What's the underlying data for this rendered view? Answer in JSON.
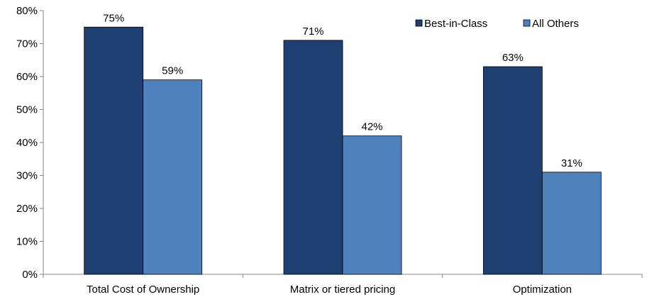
{
  "chart_data": {
    "type": "bar",
    "categories": [
      "Total Cost of Ownership",
      "Matrix or tiered pricing",
      "Optimization"
    ],
    "series": [
      {
        "name": "Best-in-Class",
        "values": [
          75,
          71,
          63
        ],
        "labels": [
          "75%",
          "71%",
          "63%"
        ],
        "color": "#1F3F73"
      },
      {
        "name": "All Others",
        "values": [
          59,
          42,
          31
        ],
        "labels": [
          "59%",
          "42%",
          "31%"
        ],
        "color": "#4F81BD"
      }
    ],
    "yticks": [
      0,
      10,
      20,
      30,
      40,
      50,
      60,
      70,
      80
    ],
    "ytick_labels": [
      "0%",
      "10%",
      "20%",
      "30%",
      "40%",
      "50%",
      "60%",
      "70%",
      "80%"
    ],
    "ylim": [
      0,
      80
    ],
    "grid": false,
    "legend_position": "top-right"
  }
}
